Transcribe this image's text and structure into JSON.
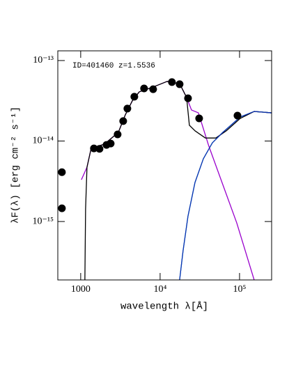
{
  "chart_data": {
    "type": "scatter",
    "annotation": "ID=401460 z=1.5536",
    "xlabel": "wavelength λ[Å]",
    "ylabel": "λF(λ) [erg cm⁻² s⁻¹]",
    "xscale": "log",
    "yscale": "log",
    "xlim": [
      515,
      253500
    ],
    "ylim": [
      1.88e-16,
      1.32e-13
    ],
    "xticks": [
      1000,
      {
        "value": 10000,
        "label": "10⁴"
      },
      {
        "value": 100000,
        "label": "10⁵"
      }
    ],
    "yticks": [
      {
        "value": 1e-15,
        "label": "10⁻¹⁵"
      },
      {
        "value": 1e-14,
        "label": "10⁻¹⁴"
      },
      {
        "value": 1e-13,
        "label": "10⁻¹³"
      }
    ],
    "points": {
      "color": "#000000",
      "x": [
        580,
        580,
        1467,
        1726,
        2113,
        2386,
        2917,
        3428,
        3870,
        4735,
        6280,
        8170,
        14080,
        17600,
        22450,
        31000,
        94200
      ],
      "values": [
        4.1e-15,
        1.46e-15,
        8.1e-15,
        8e-15,
        8.95e-15,
        9.3e-15,
        1.21e-14,
        1.77e-14,
        2.53e-14,
        3.55e-14,
        4.5e-14,
        4.4e-14,
        5.4e-14,
        5.08e-14,
        3.4e-14,
        1.91e-14,
        2.07e-14
      ]
    },
    "series": [
      {
        "color": "#00bfe0",
        "x": [
          17600,
          19450,
          22450,
          27470,
          35000,
          45500,
          61500,
          102100,
          152800,
          253500
        ],
        "values": [
          1.88e-16,
          4.33e-16,
          1.17e-15,
          3.05e-15,
          6.01e-15,
          9.51e-15,
          1.28e-14,
          1.99e-14,
          2.33e-14,
          2.24e-14
        ]
      },
      {
        "color": "#9900cc",
        "x": [
          1020,
          1200,
          1355,
          1987,
          2979,
          3641,
          4457,
          5458,
          8170,
          12240,
          17600,
          21550,
          24830,
          30350,
          41100,
          61500,
          92200,
          152800
        ],
        "values": [
          3.3e-15,
          4.73e-15,
          8.11e-15,
          9.14e-15,
          1.28e-14,
          2.11e-14,
          3.15e-14,
          4.08e-14,
          4.69e-14,
          5.5e-14,
          5.17e-14,
          3.48e-14,
          2.43e-14,
          2.24e-14,
          8.61e-15,
          2.88e-15,
          9.62e-16,
          1.88e-16
        ]
      },
      {
        "color": "#000000",
        "x": [
          1129,
          1152,
          1200,
          1355,
          1987,
          2979,
          3641,
          4457,
          5458,
          8170,
          12240,
          17600,
          21550,
          23350,
          27470,
          37150,
          50300,
          68100,
          102100,
          152800,
          253500
        ],
        "values": [
          1.88e-16,
          1.43e-15,
          4.73e-15,
          8.11e-15,
          9.14e-15,
          1.28e-14,
          2.11e-14,
          3.15e-14,
          4.08e-14,
          4.69e-14,
          5.5e-14,
          5.17e-14,
          3.48e-14,
          1.57e-14,
          1.34e-14,
          1.09e-14,
          1.09e-14,
          1.34e-14,
          1.91e-14,
          2.33e-14,
          2.24e-14
        ]
      },
      {
        "color": "#1030b0",
        "x": [
          17600,
          19450,
          22450,
          27470,
          35000,
          45500,
          61500,
          102100,
          152800,
          253500
        ],
        "values": [
          1.88e-16,
          4.33e-16,
          1.17e-15,
          3.05e-15,
          6.01e-15,
          9.51e-15,
          1.28e-14,
          1.99e-14,
          2.33e-14,
          2.24e-14
        ]
      }
    ]
  }
}
